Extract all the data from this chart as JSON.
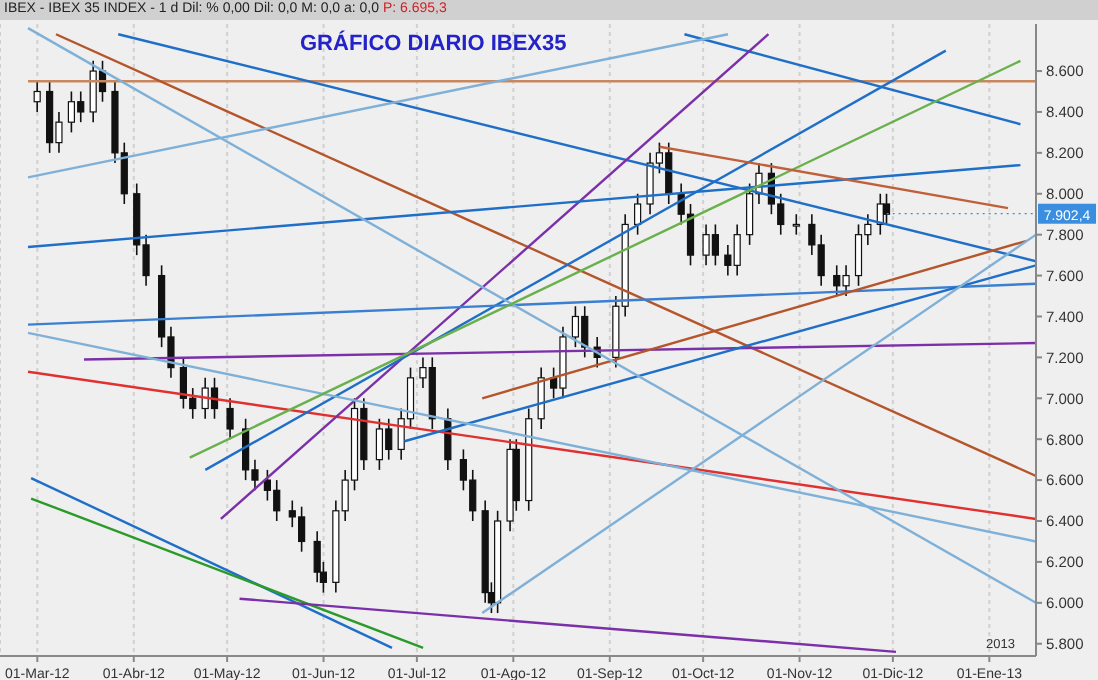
{
  "chart_data": {
    "type": "candlestick",
    "title": "GRÁFICO DIARIO IBEX35",
    "annotations": [
      "IBEX - IBEX 35 INDEX - 1 d Dil: % 0,00 Dil: 0,0 M: 0,0 a: 0,0",
      "P: 6.695,3",
      "2013",
      {
        "text": "7.902,4",
        "x": "2012-11-29",
        "y": 7902.4
      }
    ],
    "x": [
      "2012-03-01",
      "2012-03-05",
      "2012-03-08",
      "2012-03-12",
      "2012-03-15",
      "2012-03-19",
      "2012-03-22",
      "2012-03-26",
      "2012-03-29",
      "2012-04-02",
      "2012-04-05",
      "2012-04-10",
      "2012-04-13",
      "2012-04-17",
      "2012-04-20",
      "2012-04-24",
      "2012-04-27",
      "2012-05-02",
      "2012-05-07",
      "2012-05-10",
      "2012-05-14",
      "2012-05-17",
      "2012-05-22",
      "2012-05-25",
      "2012-05-30",
      "2012-06-01",
      "2012-06-05",
      "2012-06-08",
      "2012-06-11",
      "2012-06-14",
      "2012-06-19",
      "2012-06-22",
      "2012-06-26",
      "2012-06-29",
      "2012-07-03",
      "2012-07-06",
      "2012-07-11",
      "2012-07-16",
      "2012-07-19",
      "2012-07-23",
      "2012-07-25",
      "2012-07-27",
      "2012-07-31",
      "2012-08-02",
      "2012-08-06",
      "2012-08-10",
      "2012-08-14",
      "2012-08-17",
      "2012-08-21",
      "2012-08-24",
      "2012-08-28",
      "2012-09-03",
      "2012-09-06",
      "2012-09-10",
      "2012-09-14",
      "2012-09-17",
      "2012-09-20",
      "2012-09-24",
      "2012-09-27",
      "2012-10-02",
      "2012-10-05",
      "2012-10-09",
      "2012-10-12",
      "2012-10-16",
      "2012-10-19",
      "2012-10-23",
      "2012-10-26",
      "2012-10-31",
      "2012-11-05",
      "2012-11-08",
      "2012-11-13",
      "2012-11-16",
      "2012-11-20",
      "2012-11-23",
      "2012-11-27",
      "2012-11-29"
    ],
    "ohlc": [
      [
        8450,
        8550,
        8400,
        8500
      ],
      [
        8500,
        8550,
        8200,
        8250
      ],
      [
        8250,
        8400,
        8200,
        8350
      ],
      [
        8350,
        8500,
        8300,
        8450
      ],
      [
        8450,
        8500,
        8350,
        8400
      ],
      [
        8400,
        8650,
        8350,
        8600
      ],
      [
        8600,
        8650,
        8450,
        8500
      ],
      [
        8500,
        8550,
        8150,
        8200
      ],
      [
        8200,
        8250,
        7950,
        8000
      ],
      [
        8000,
        8050,
        7700,
        7750
      ],
      [
        7750,
        7800,
        7550,
        7600
      ],
      [
        7600,
        7650,
        7250,
        7300
      ],
      [
        7300,
        7350,
        7100,
        7150
      ],
      [
        7150,
        7200,
        6950,
        7000
      ],
      [
        7000,
        7050,
        6900,
        6950
      ],
      [
        6950,
        7100,
        6900,
        7050
      ],
      [
        7050,
        7100,
        6900,
        6950
      ],
      [
        6950,
        7000,
        6800,
        6850
      ],
      [
        6850,
        6900,
        6600,
        6650
      ],
      [
        6650,
        6700,
        6550,
        6600
      ],
      [
        6600,
        6650,
        6500,
        6550
      ],
      [
        6550,
        6600,
        6400,
        6450
      ],
      [
        6450,
        6500,
        6370,
        6420
      ],
      [
        6420,
        6470,
        6250,
        6300
      ],
      [
        6300,
        6350,
        6100,
        6150
      ],
      [
        6150,
        6200,
        6050,
        6100
      ],
      [
        6100,
        6500,
        6050,
        6450
      ],
      [
        6450,
        6650,
        6400,
        6600
      ],
      [
        6600,
        7000,
        6550,
        6950
      ],
      [
        6950,
        7000,
        6650,
        6700
      ],
      [
        6700,
        6900,
        6650,
        6850
      ],
      [
        6850,
        6900,
        6700,
        6750
      ],
      [
        6750,
        6950,
        6700,
        6900
      ],
      [
        6900,
        7150,
        6850,
        7100
      ],
      [
        7100,
        7200,
        7050,
        7150
      ],
      [
        7150,
        7200,
        6850,
        6900
      ],
      [
        6900,
        6950,
        6650,
        6700
      ],
      [
        6700,
        6750,
        6550,
        6600
      ],
      [
        6600,
        6650,
        6400,
        6450
      ],
      [
        6450,
        6500,
        6000,
        6050
      ],
      [
        6050,
        6100,
        5950,
        6000
      ],
      [
        6000,
        6450,
        5950,
        6400
      ],
      [
        6400,
        6800,
        6350,
        6750
      ],
      [
        6750,
        6800,
        6450,
        6500
      ],
      [
        6500,
        6950,
        6450,
        6900
      ],
      [
        6900,
        7150,
        6850,
        7100
      ],
      [
        7100,
        7150,
        7000,
        7050
      ],
      [
        7050,
        7350,
        7000,
        7300
      ],
      [
        7300,
        7450,
        7250,
        7400
      ],
      [
        7400,
        7450,
        7200,
        7250
      ],
      [
        7250,
        7300,
        7150,
        7200
      ],
      [
        7200,
        7500,
        7150,
        7450
      ],
      [
        7450,
        7900,
        7400,
        7850
      ],
      [
        7850,
        8000,
        7800,
        7950
      ],
      [
        7950,
        8200,
        7900,
        8150
      ],
      [
        8150,
        8250,
        8100,
        8200
      ],
      [
        8200,
        8250,
        7950,
        8000
      ],
      [
        8000,
        8050,
        7850,
        7900
      ],
      [
        7900,
        7950,
        7650,
        7700
      ],
      [
        7700,
        7850,
        7650,
        7800
      ],
      [
        7800,
        7850,
        7650,
        7700
      ],
      [
        7700,
        7750,
        7600,
        7650
      ],
      [
        7650,
        7850,
        7600,
        7800
      ],
      [
        7800,
        8050,
        7750,
        8000
      ],
      [
        8000,
        8150,
        7950,
        8100
      ],
      [
        8100,
        8150,
        7900,
        7950
      ],
      [
        7950,
        8000,
        7800,
        7850
      ],
      [
        7850,
        7900,
        7800,
        7850
      ],
      [
        7850,
        7900,
        7700,
        7750
      ],
      [
        7750,
        7800,
        7550,
        7600
      ],
      [
        7600,
        7650,
        7500,
        7550
      ],
      [
        7550,
        7650,
        7500,
        7600
      ],
      [
        7600,
        7850,
        7550,
        7800
      ],
      [
        7800,
        7900,
        7750,
        7850
      ],
      [
        7850,
        8000,
        7800,
        7950
      ],
      [
        7950,
        8000,
        7850,
        7900
      ]
    ],
    "series": [
      {
        "type": "line",
        "color": "#c8875f",
        "x": [
          "2012-02-27",
          "2013-01-16"
        ],
        "values": [
          8550,
          8550
        ]
      },
      {
        "type": "line",
        "color": "#b5552b",
        "x": [
          "2012-03-07",
          "2013-01-16"
        ],
        "values": [
          8780,
          6620
        ]
      },
      {
        "type": "line",
        "color": "#e03030",
        "x": [
          "2012-02-27",
          "2013-01-16"
        ],
        "values": [
          7130,
          6410
        ]
      },
      {
        "type": "line",
        "color": "#1f6fc8",
        "x": [
          "2012-03-27",
          "2013-01-16"
        ],
        "values": [
          8780,
          7670
        ]
      },
      {
        "type": "line",
        "color": "#1f6fc8",
        "x": [
          "2012-09-25",
          "2013-01-11"
        ],
        "values": [
          8780,
          8340
        ]
      },
      {
        "type": "line",
        "color": "#7b2fa8",
        "x": [
          "2012-04-29",
          "2012-10-22"
        ],
        "values": [
          6410,
          8780
        ]
      },
      {
        "type": "line",
        "color": "#1f6fc8",
        "x": [
          "2012-04-24",
          "2012-12-18"
        ],
        "values": [
          6650,
          8700
        ]
      },
      {
        "type": "line",
        "color": "#1f6fc8",
        "x": [
          "2012-02-27",
          "2013-01-11"
        ],
        "values": [
          7740,
          8140
        ]
      },
      {
        "type": "line",
        "color": "#3a7fd0",
        "x": [
          "2012-02-27",
          "2013-01-16"
        ],
        "values": [
          7360,
          7560
        ]
      },
      {
        "type": "line",
        "color": "#7b2fa8",
        "x": [
          "2012-03-16",
          "2013-01-16"
        ],
        "values": [
          7190,
          7270
        ]
      },
      {
        "type": "line",
        "color": "#1f6fc8",
        "x": [
          "2012-06-27",
          "2013-01-16"
        ],
        "values": [
          6790,
          7650
        ]
      },
      {
        "type": "line",
        "color": "#b5552b",
        "x": [
          "2012-07-22",
          "2013-01-13"
        ],
        "values": [
          7000,
          7770
        ]
      },
      {
        "type": "line",
        "color": "#7fb0d8",
        "x": [
          "2012-02-27",
          "2013-01-16"
        ],
        "values": [
          8810,
          6000
        ]
      },
      {
        "type": "line",
        "color": "#7fb0d8",
        "x": [
          "2012-02-27",
          "2012-10-09"
        ],
        "values": [
          8080,
          8780
        ]
      },
      {
        "type": "line",
        "color": "#7fb0d8",
        "x": [
          "2012-02-27",
          "2013-01-16"
        ],
        "values": [
          7320,
          6300
        ]
      },
      {
        "type": "line",
        "color": "#7fb0d8",
        "x": [
          "2012-07-22",
          "2013-01-16"
        ],
        "values": [
          5950,
          7800
        ]
      },
      {
        "type": "line",
        "color": "#6ab04c",
        "x": [
          "2012-04-19",
          "2013-01-11"
        ],
        "values": [
          6710,
          8650
        ]
      },
      {
        "type": "line",
        "color": "#c0603a",
        "x": [
          "2012-09-17",
          "2013-01-07"
        ],
        "values": [
          8230,
          7930
        ]
      },
      {
        "type": "line",
        "color": "#1f6fc8",
        "x": [
          "2012-02-28",
          "2012-06-23"
        ],
        "values": [
          6610,
          5780
        ]
      },
      {
        "type": "line",
        "color": "#2a9a2a",
        "x": [
          "2012-02-28",
          "2012-07-03"
        ],
        "values": [
          6510,
          5780
        ]
      },
      {
        "type": "line",
        "color": "#7b2fa8",
        "x": [
          "2012-05-05",
          "2012-12-02"
        ],
        "values": [
          6020,
          5760
        ]
      }
    ],
    "xlim": [
      "2012-02-18",
      "2013-01-16"
    ],
    "xticks": [
      {
        "value": "2012-03-01",
        "label": "01-Mar-12"
      },
      {
        "value": "2012-04-01",
        "label": "01-Abr-12"
      },
      {
        "value": "2012-05-01",
        "label": "01-May-12"
      },
      {
        "value": "2012-06-01",
        "label": "01-Jun-12"
      },
      {
        "value": "2012-07-01",
        "label": "01-Jul-12"
      },
      {
        "value": "2012-08-01",
        "label": "01-Ago-12"
      },
      {
        "value": "2012-09-01",
        "label": "01-Sep-12"
      },
      {
        "value": "2012-10-01",
        "label": "01-Oct-12"
      },
      {
        "value": "2012-11-01",
        "label": "01-Nov-12"
      },
      {
        "value": "2012-12-01",
        "label": "01-Dic-12"
      },
      {
        "value": "2013-01-01",
        "label": "01-Ene-13"
      }
    ],
    "ylim": [
      5740,
      8830
    ],
    "yticks": [
      {
        "value": 5800,
        "label": "5.800"
      },
      {
        "value": 6000,
        "label": "6.000"
      },
      {
        "value": 6200,
        "label": "6.200"
      },
      {
        "value": 6400,
        "label": "6.400"
      },
      {
        "value": 6600,
        "label": "6.600"
      },
      {
        "value": 6800,
        "label": "6.800"
      },
      {
        "value": 7000,
        "label": "7.000"
      },
      {
        "value": 7200,
        "label": "7.200"
      },
      {
        "value": 7400,
        "label": "7.400"
      },
      {
        "value": 7600,
        "label": "7.600"
      },
      {
        "value": 7800,
        "label": "7.800"
      },
      {
        "value": 8000,
        "label": "8.000"
      },
      {
        "value": 8200,
        "label": "8.200"
      },
      {
        "value": 8400,
        "label": "8.400"
      },
      {
        "value": 8600,
        "label": "8.600"
      }
    ],
    "grid": "x"
  }
}
